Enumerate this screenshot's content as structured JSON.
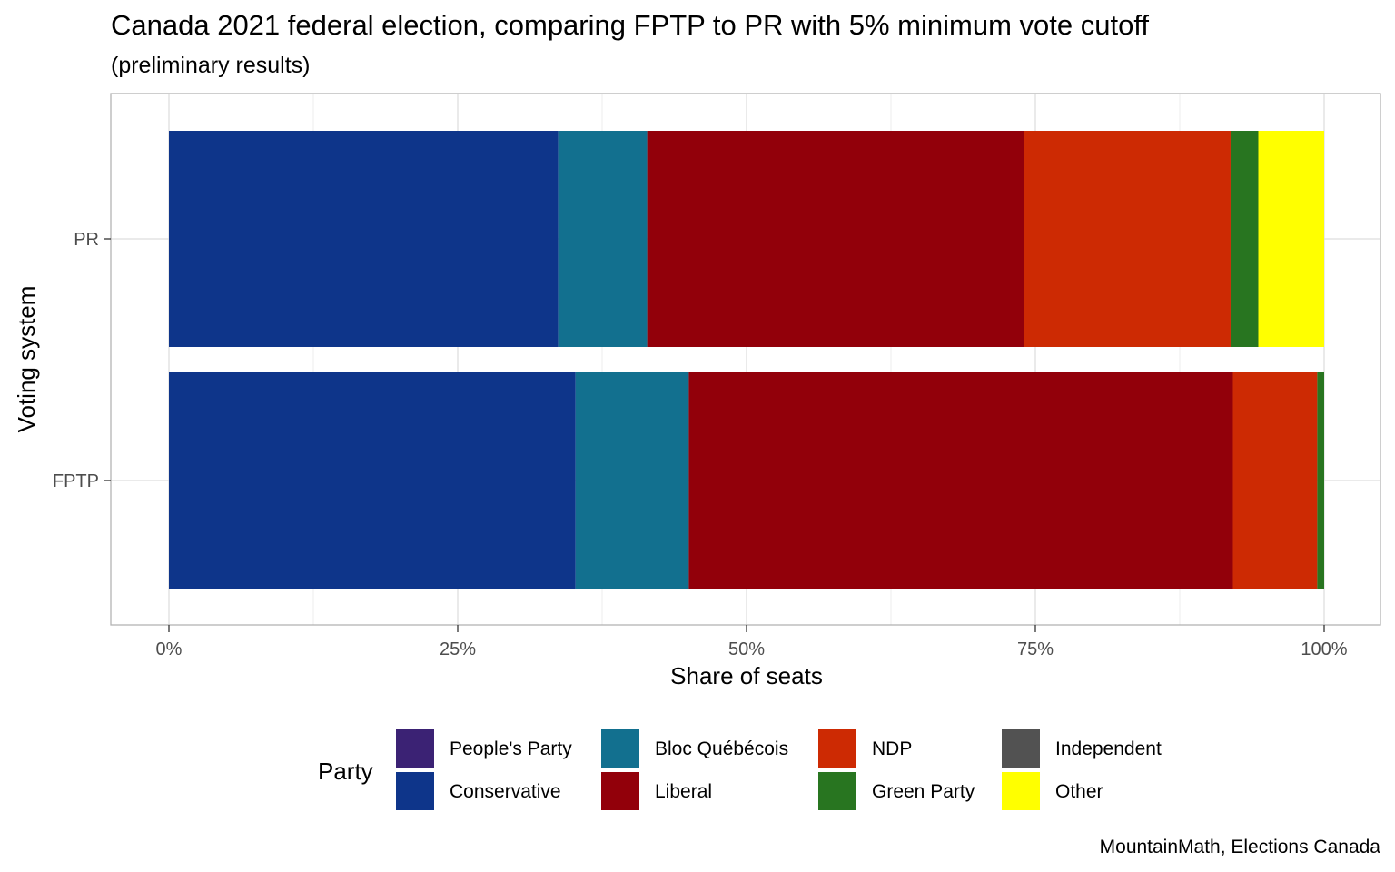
{
  "title": "Canada 2021 federal election, comparing FPTP to PR with 5% minimum vote cutoff",
  "subtitle": "(preliminary results)",
  "caption": "MountainMath, Elections Canada",
  "legend": {
    "title": "Party",
    "items": [
      {
        "label": "People's Party",
        "color": "#3b2274"
      },
      {
        "label": "Conservative",
        "color": "#0e358a"
      },
      {
        "label": "Bloc Québécois",
        "color": "#12708f"
      },
      {
        "label": "Liberal",
        "color": "#92000a"
      },
      {
        "label": "NDP",
        "color": "#cd2a03"
      },
      {
        "label": "Green Party",
        "color": "#287520"
      },
      {
        "label": "Independent",
        "color": "#525252"
      },
      {
        "label": "Other",
        "color": "#ffff00"
      }
    ]
  },
  "chart_data": {
    "type": "bar",
    "orientation": "horizontal",
    "stacked": true,
    "xlabel": "Share of seats",
    "ylabel": "Voting system",
    "xlim": [
      0,
      100
    ],
    "x_ticks": [
      "0%",
      "25%",
      "50%",
      "75%",
      "100%"
    ],
    "categories": [
      "PR",
      "FPTP"
    ],
    "grid": true,
    "legend_position": "bottom",
    "series": [
      {
        "name": "Conservative",
        "values": [
          33.7,
          35.2
        ]
      },
      {
        "name": "Bloc Québécois",
        "values": [
          7.7,
          9.8
        ]
      },
      {
        "name": "Liberal",
        "values": [
          32.6,
          47.1
        ]
      },
      {
        "name": "NDP",
        "values": [
          17.9,
          7.3
        ]
      },
      {
        "name": "Green Party",
        "values": [
          2.4,
          0.6
        ]
      },
      {
        "name": "Other",
        "values": [
          5.7,
          0
        ]
      }
    ]
  }
}
